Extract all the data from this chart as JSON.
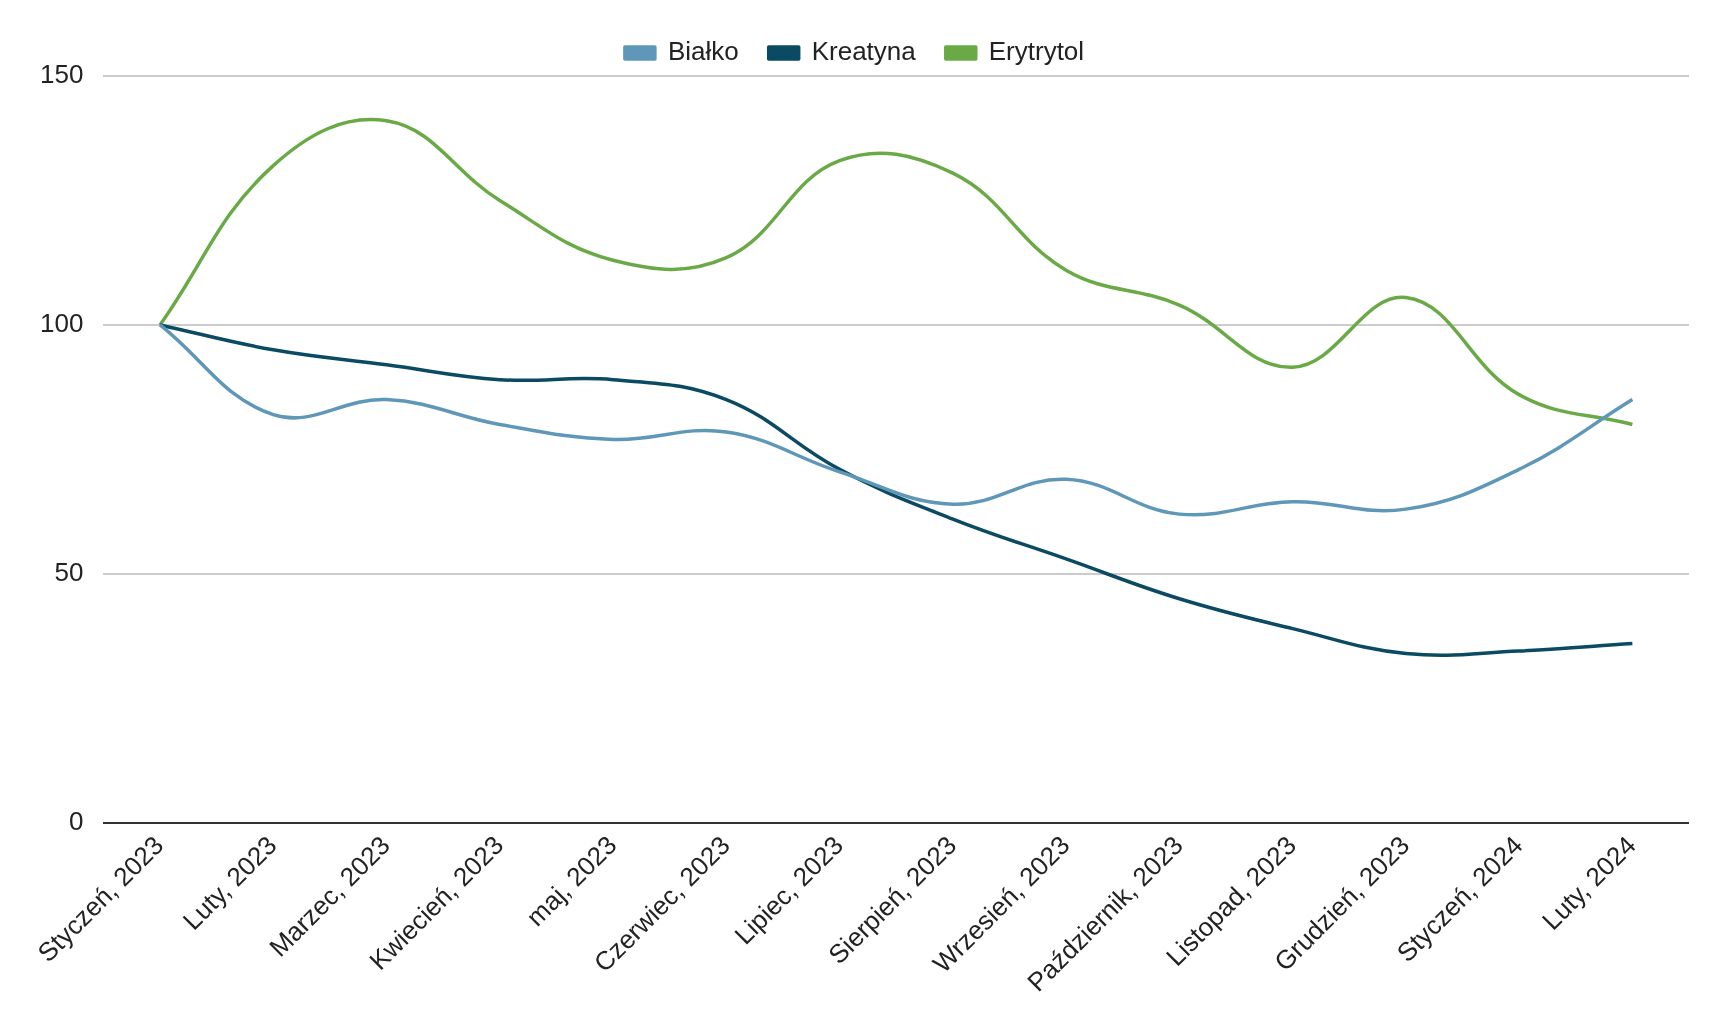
{
  "chart_data": {
    "type": "line",
    "categories": [
      "Styczeń, 2023",
      "Luty, 2023",
      "Marzec, 2023",
      "Kwiecień, 2023",
      "maj, 2023",
      "Czerwiec, 2023",
      "Lipiec, 2023",
      "Sierpień, 2023",
      "Wrzesień, 2023",
      "Październik, 2023",
      "Listopad, 2023",
      "Grudzień, 2023",
      "Styczeń, 2024",
      "Luty, 2024"
    ],
    "series": [
      {
        "name": "Białko",
        "color": "#5e97b8",
        "values": [
          100,
          82,
          85,
          80,
          77,
          78.5,
          70.5,
          64,
          69,
          62,
          64.5,
          63,
          71,
          85
        ]
      },
      {
        "name": "Kreatyna",
        "color": "#0b4a63",
        "values": [
          100,
          95,
          92,
          89,
          89,
          85,
          71,
          61,
          53,
          45,
          39,
          34,
          34.5,
          36
        ]
      },
      {
        "name": "Erytrytol",
        "color": "#6aaa46",
        "values": [
          100,
          132,
          141,
          125,
          113,
          113.5,
          133,
          130.5,
          111,
          104,
          91.5,
          105.5,
          86,
          80
        ]
      }
    ],
    "ylim": [
      0,
      150
    ],
    "yticks": [
      0,
      50,
      100,
      150
    ],
    "grid": "y",
    "legend": "top",
    "marker": "none",
    "line_style": "solid"
  }
}
